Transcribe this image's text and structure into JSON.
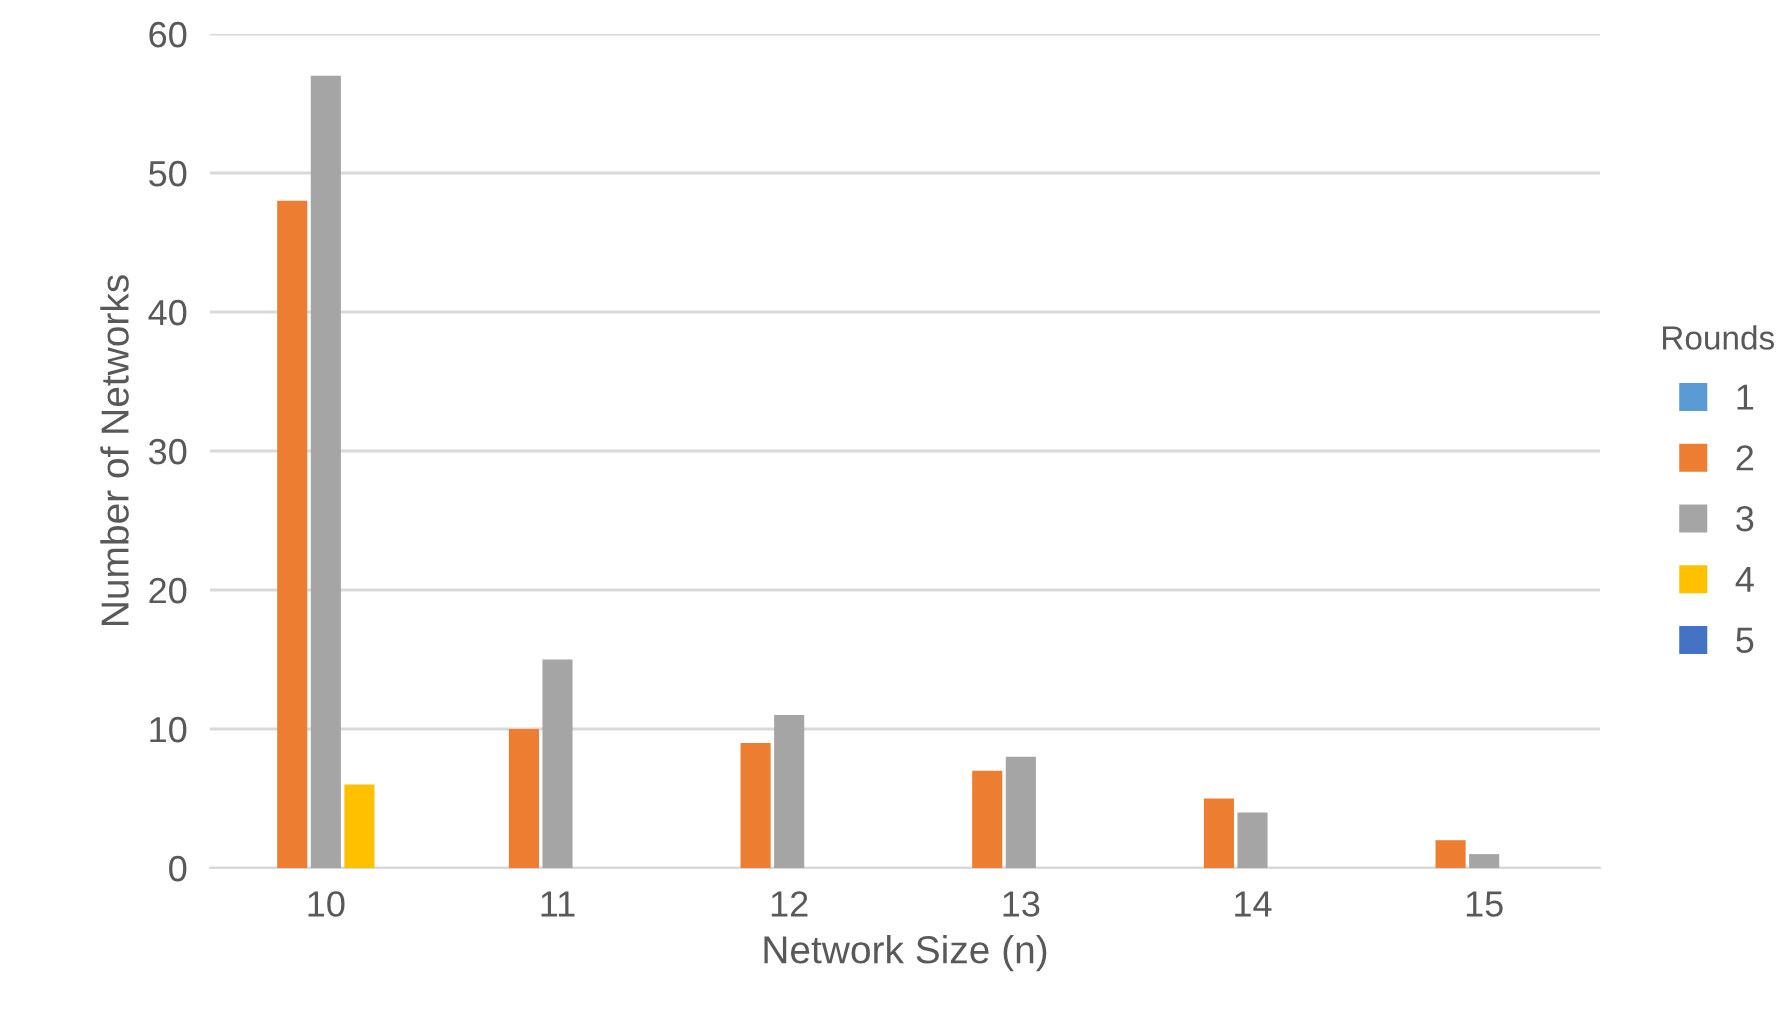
{
  "chart_data": {
    "type": "bar",
    "xlabel": "Network Size (n)",
    "ylabel": "Number of Networks",
    "legend_title": "Rounds",
    "categories": [
      "10",
      "11",
      "12",
      "13",
      "14",
      "15"
    ],
    "series": [
      {
        "name": "1",
        "color": "#5b9bd5",
        "values": [
          0,
          0,
          0,
          0,
          0,
          0
        ]
      },
      {
        "name": "2",
        "color": "#ed7d31",
        "values": [
          48,
          10,
          9,
          7,
          5,
          2
        ]
      },
      {
        "name": "3",
        "color": "#a5a5a5",
        "values": [
          57,
          15,
          11,
          8,
          4,
          1
        ]
      },
      {
        "name": "4",
        "color": "#ffc000",
        "values": [
          6,
          0,
          0,
          0,
          0,
          0
        ]
      },
      {
        "name": "5",
        "color": "#4472c4",
        "values": [
          0,
          0,
          0,
          0,
          0,
          0
        ]
      }
    ],
    "ylim": [
      0,
      60
    ],
    "yticks": [
      0,
      10,
      20,
      30,
      40,
      50,
      60
    ],
    "grid": "y",
    "legend": "right"
  }
}
